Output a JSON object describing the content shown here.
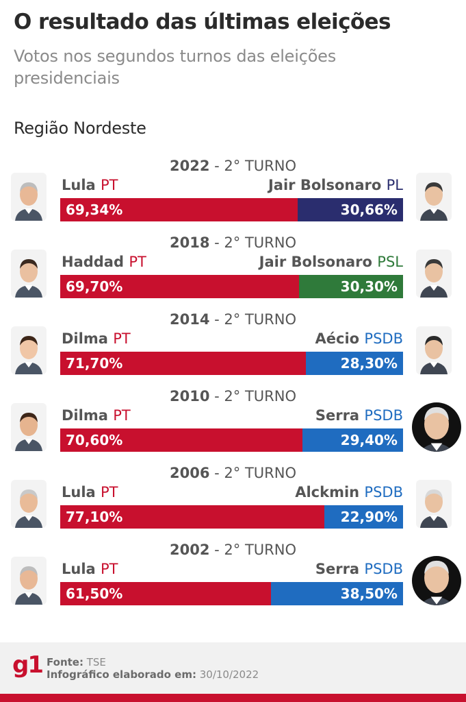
{
  "title": "O resultado das últimas eleições",
  "subtitle": "Votos nos segundos turnos das eleições presidenciais",
  "region": "Região Nordeste",
  "colors": {
    "PT": "#c8102e",
    "PL": "#2a2d6e",
    "PSL": "#2f7a3a",
    "PSDB": "#1f6cc0",
    "text": "#555555"
  },
  "chart_data": {
    "type": "bar",
    "stacked": true,
    "orientation": "horizontal",
    "categories": [
      "2022",
      "2018",
      "2014",
      "2010",
      "2006",
      "2002"
    ],
    "round_label": "2° TURNO",
    "elections": [
      {
        "year": "2022",
        "round": "2° TURNO",
        "a_name": "Lula",
        "a_party": "PT",
        "a_value": 69.34,
        "a_label": "69,34%",
        "b_name": "Jair Bolsonaro",
        "b_party": "PL",
        "b_value": 30.66,
        "b_label": "30,66%",
        "b_color": "#2a2d6e"
      },
      {
        "year": "2018",
        "round": "2° TURNO",
        "a_name": "Haddad",
        "a_party": "PT",
        "a_value": 69.7,
        "a_label": "69,70%",
        "b_name": "Jair Bolsonaro",
        "b_party": "PSL",
        "b_value": 30.3,
        "b_label": "30,30%",
        "b_color": "#2f7a3a"
      },
      {
        "year": "2014",
        "round": "2° TURNO",
        "a_name": "Dilma",
        "a_party": "PT",
        "a_value": 71.7,
        "a_label": "71,70%",
        "b_name": "Aécio",
        "b_party": "PSDB",
        "b_value": 28.3,
        "b_label": "28,30%",
        "b_color": "#1f6cc0"
      },
      {
        "year": "2010",
        "round": "2° TURNO",
        "a_name": "Dilma",
        "a_party": "PT",
        "a_value": 70.6,
        "a_label": "70,60%",
        "b_name": "Serra",
        "b_party": "PSDB",
        "b_value": 29.4,
        "b_label": "29,40%",
        "b_color": "#1f6cc0"
      },
      {
        "year": "2006",
        "round": "2° TURNO",
        "a_name": "Lula",
        "a_party": "PT",
        "a_value": 77.1,
        "a_label": "77,10%",
        "b_name": "Alckmin",
        "b_party": "PSDB",
        "b_value": 22.9,
        "b_label": "22,90%",
        "b_color": "#1f6cc0"
      },
      {
        "year": "2002",
        "round": "2° TURNO",
        "a_name": "Lula",
        "a_party": "PT",
        "a_value": 61.5,
        "a_label": "61,50%",
        "b_name": "Serra",
        "b_party": "PSDB",
        "b_value": 38.5,
        "b_label": "38,50%",
        "b_color": "#1f6cc0"
      }
    ],
    "xlim": [
      0,
      100
    ],
    "legend": "none",
    "grid": false
  },
  "footer": {
    "logo": "g1",
    "source_label": "Fonte:",
    "source_value": "TSE",
    "date_label": "Infográfico elaborado em:",
    "date_value": "30/10/2022"
  }
}
